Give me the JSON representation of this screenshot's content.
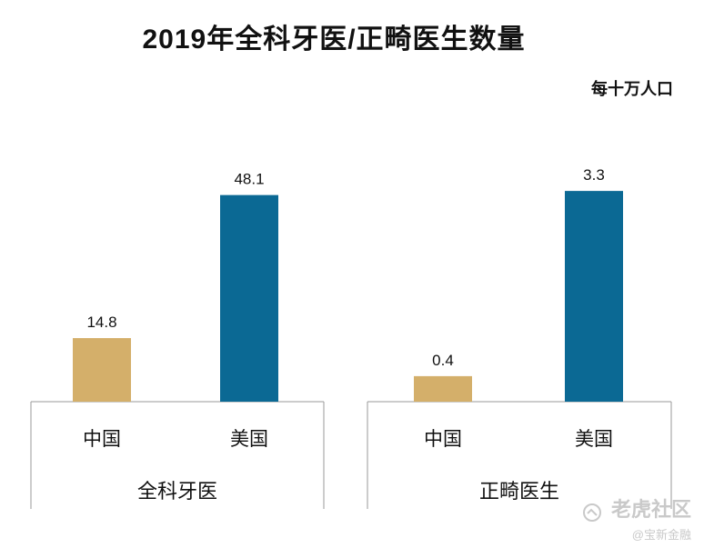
{
  "chart_data": {
    "type": "bar",
    "title": "2019年全科牙医/正畸医生数量",
    "unit_label": "每十万人口",
    "colors": {
      "china": "#D4AF6A",
      "usa": "#0B6994",
      "axis": "#9a9a9a"
    },
    "groups": [
      {
        "name": "全科牙医",
        "categories": [
          "中国",
          "美国"
        ],
        "values": [
          14.8,
          48.1
        ],
        "value_labels": [
          "14.8",
          "48.1"
        ],
        "ylim": [
          0,
          55
        ]
      },
      {
        "name": "正畸医生",
        "categories": [
          "中国",
          "美国"
        ],
        "values": [
          0.4,
          3.3
        ],
        "value_labels": [
          "0.4",
          "3.3"
        ],
        "ylim": [
          0,
          3.7
        ]
      }
    ]
  },
  "watermark": {
    "main": "老虎社区",
    "sub": "@宝新金融"
  }
}
